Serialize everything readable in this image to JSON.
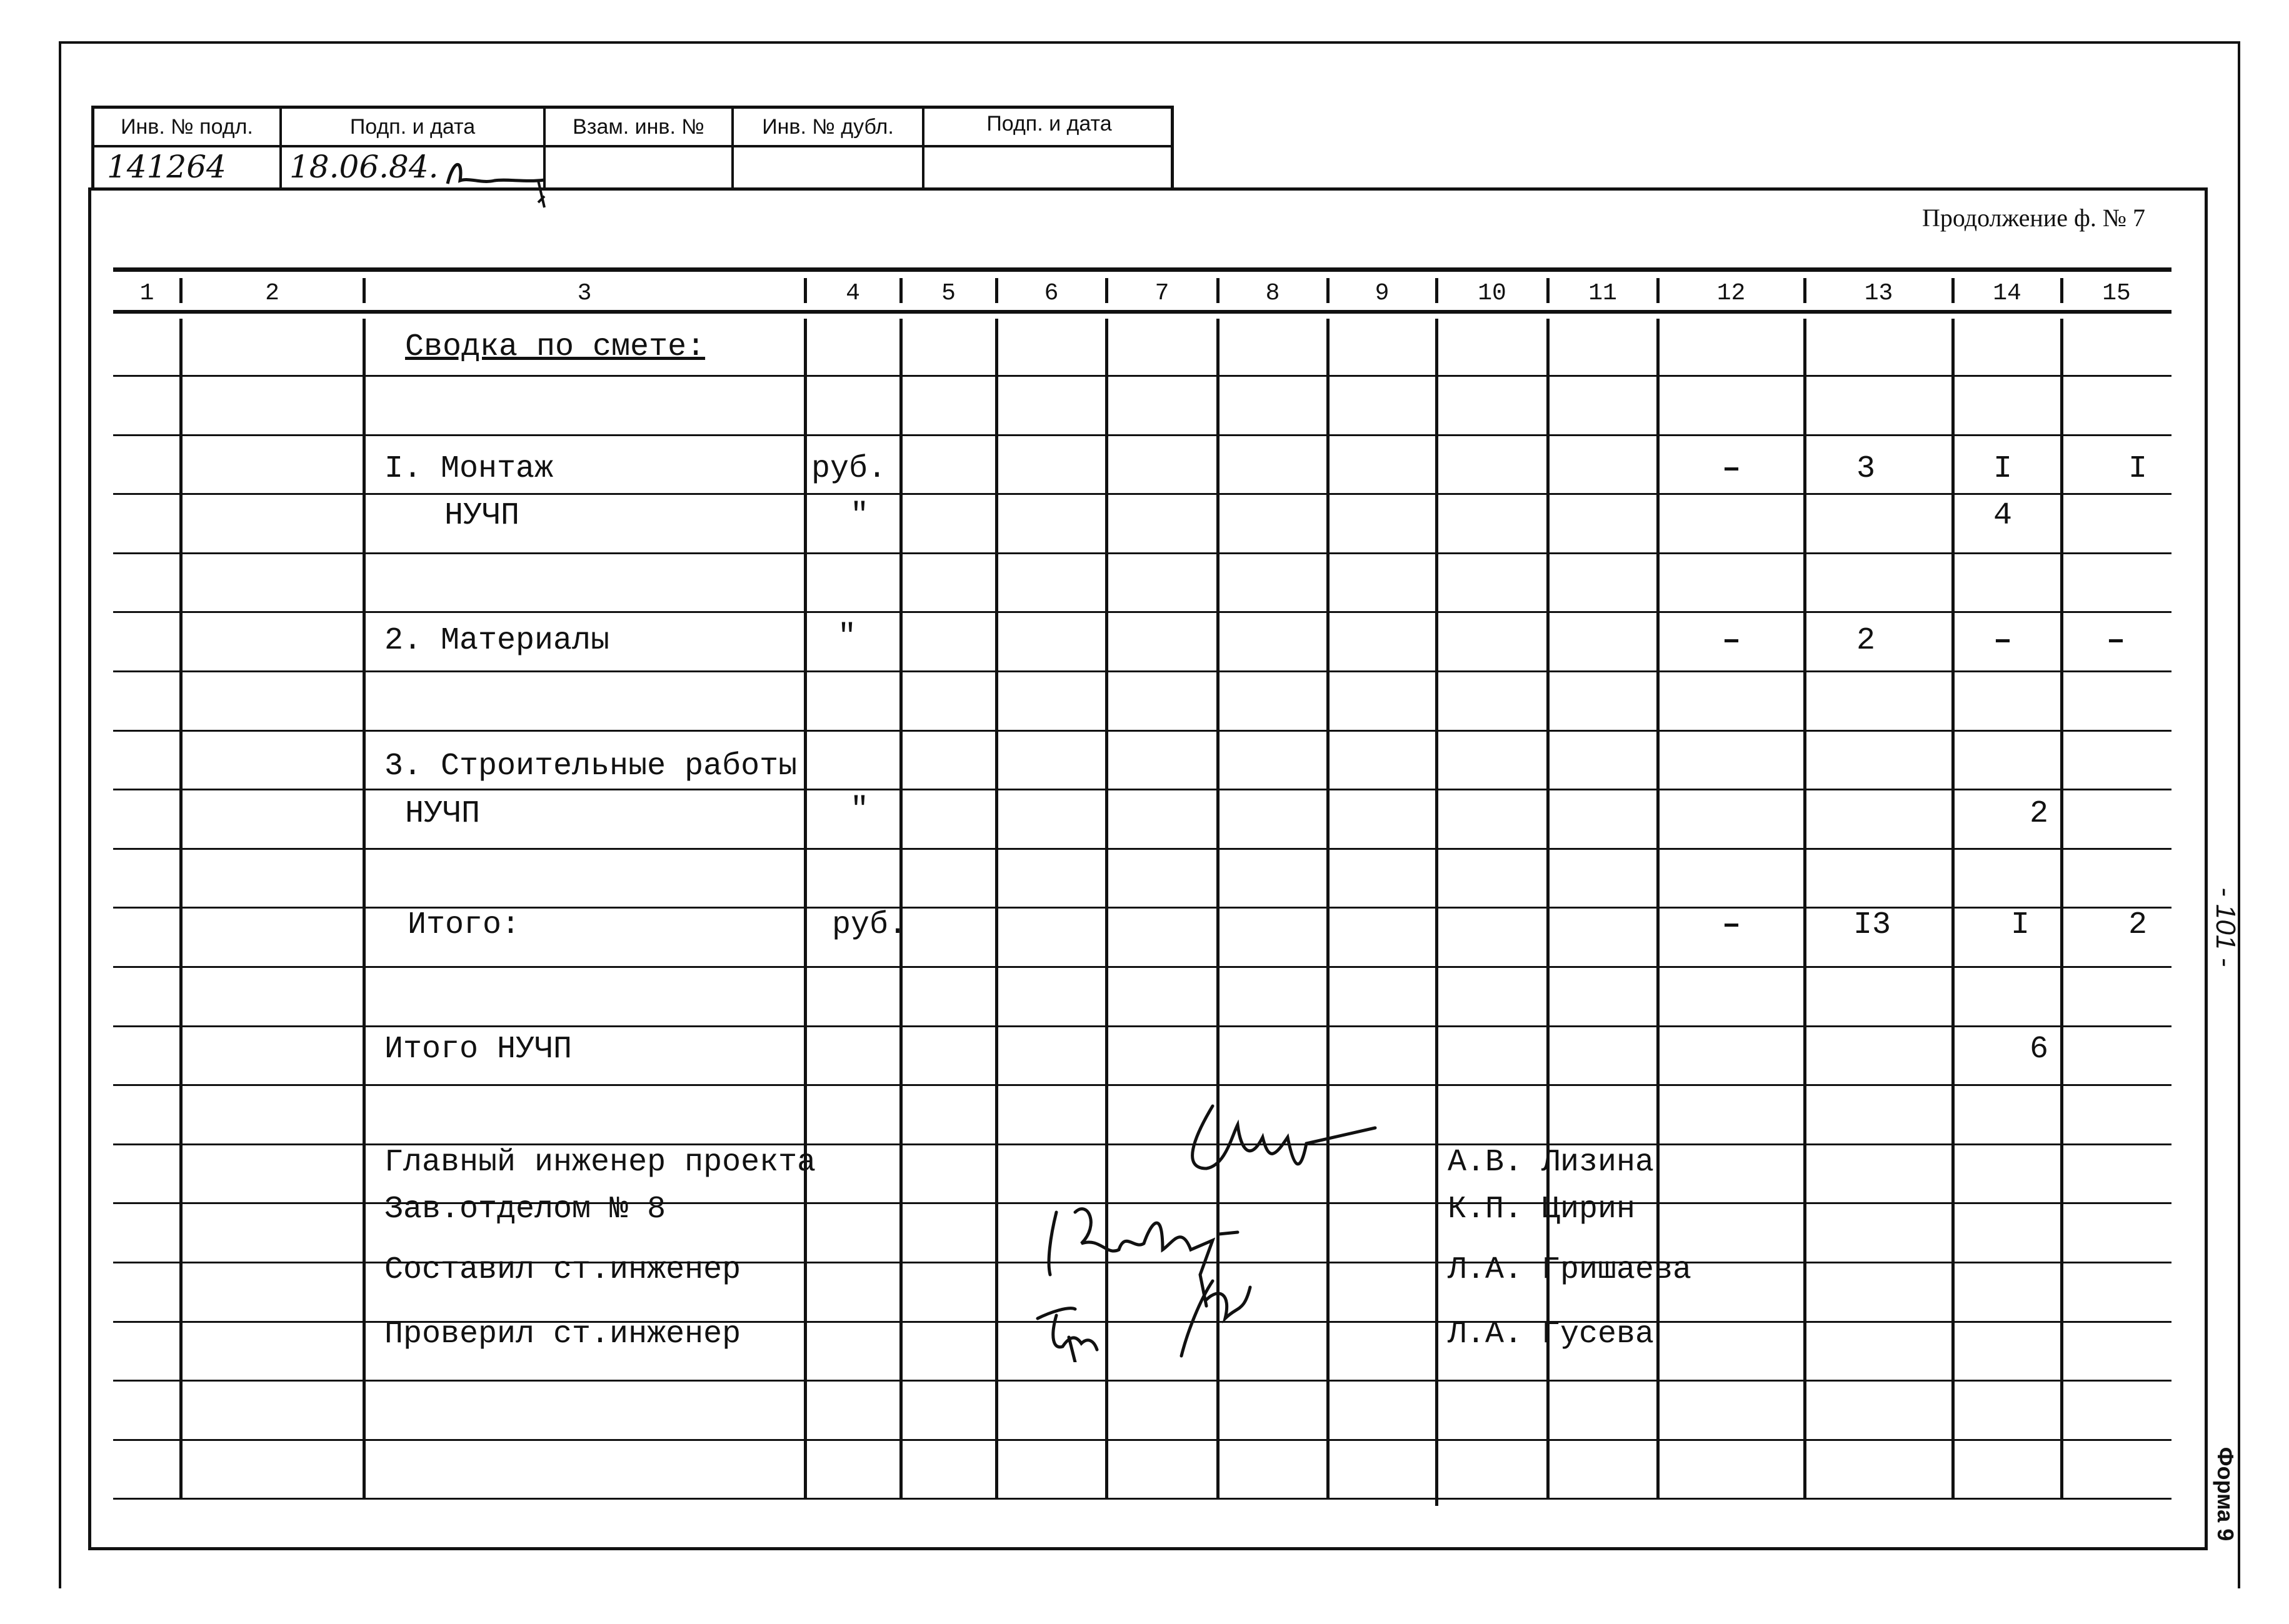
{
  "stamp": {
    "headers": [
      "Инв. № подл.",
      "Подп. и дата",
      "Взам. инв. №",
      "Инв. № дубл.",
      "Подп. и дата"
    ],
    "values": [
      "141264",
      "18.06.84.",
      "",
      "",
      ""
    ]
  },
  "continuation": "Продолжение ф. № 7",
  "column_numbers": [
    "1",
    "2",
    "3",
    "4",
    "5",
    "6",
    "7",
    "8",
    "9",
    "10",
    "11",
    "12",
    "13",
    "14",
    "15"
  ],
  "section_title": "Сводка по смете:",
  "rows": [
    {
      "label": "I. Монтаж",
      "unit": "руб.",
      "c12": "–",
      "c13": "3",
      "c14": "I",
      "c15": "I"
    },
    {
      "label": "НУЧП",
      "unit": "\"",
      "c14": "4"
    },
    {
      "label": "2. Материалы",
      "unit": "\"",
      "c12": "–",
      "c13": "2",
      "c14": "–",
      "c15": "–"
    },
    {
      "label": "3. Строительные работы"
    },
    {
      "label": "НУЧП",
      "unit": "\"",
      "c14": "2"
    },
    {
      "label": "Итого:",
      "unit": "руб.",
      "c12": "–",
      "c13": "I3",
      "c14": "I",
      "c15": "2"
    },
    {
      "label": "Итого НУЧП",
      "c14": "6"
    }
  ],
  "signatures": [
    {
      "role": "Главный инженер проекта",
      "name": "А.В. Лизина"
    },
    {
      "role": "Зав.отделом № 8",
      "name": "К.П. Цирин"
    },
    {
      "role": "Составил ст.инженер",
      "name": "Л.А. Гришаева"
    },
    {
      "role": "Проверил ст.инженер",
      "name": "Л.А. Гусева"
    }
  ],
  "page_number": "- 101 -",
  "form_label": "Форма 9"
}
